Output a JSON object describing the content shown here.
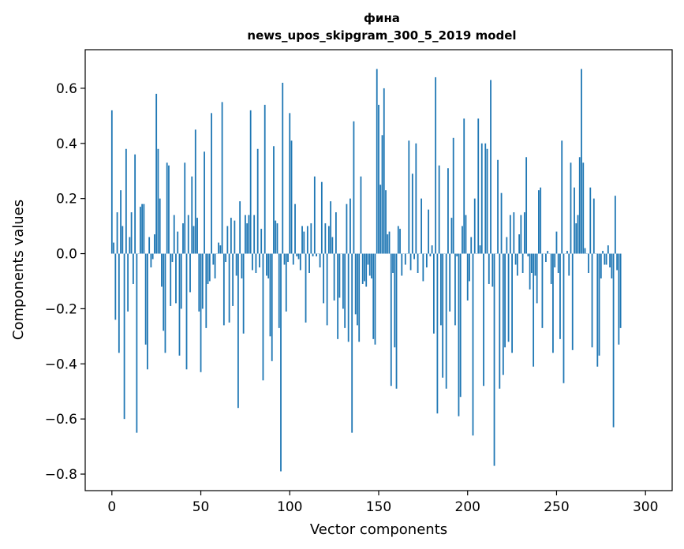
{
  "chart_data": {
    "type": "bar",
    "title": "фина",
    "subtitle": "news_upos_skipgram_300_5_2019 model",
    "xlabel": "Vector components",
    "ylabel": "Components values",
    "xlim": [
      -15,
      315
    ],
    "ylim": [
      -0.86,
      0.74
    ],
    "x_ticks": [
      0,
      50,
      100,
      150,
      200,
      250,
      300
    ],
    "y_ticks": [
      -0.8,
      -0.6,
      -0.4,
      -0.2,
      0.0,
      0.2,
      0.4,
      0.6
    ],
    "y_tick_labels": [
      "−0.8",
      "−0.6",
      "−0.4",
      "−0.2",
      "0.0",
      "0.2",
      "0.4",
      "0.6"
    ],
    "grid": false,
    "color": "#1f77b4",
    "values": [
      0.52,
      0.04,
      -0.24,
      0.15,
      -0.36,
      0.23,
      0.1,
      -0.6,
      0.38,
      -0.21,
      0.06,
      0.15,
      -0.11,
      0.36,
      -0.65,
      0.0,
      0.17,
      0.18,
      0.18,
      -0.33,
      -0.42,
      0.06,
      -0.05,
      -0.02,
      0.07,
      0.58,
      0.38,
      0.2,
      -0.12,
      -0.28,
      -0.36,
      0.33,
      0.32,
      -0.19,
      -0.03,
      0.14,
      -0.18,
      0.08,
      -0.37,
      -0.2,
      0.11,
      0.33,
      -0.42,
      0.14,
      -0.14,
      0.28,
      0.1,
      0.45,
      0.13,
      -0.21,
      -0.43,
      -0.2,
      0.37,
      -0.27,
      -0.11,
      -0.1,
      0.51,
      -0.04,
      -0.09,
      0.0,
      0.04,
      0.03,
      0.55,
      -0.26,
      -0.03,
      0.1,
      -0.25,
      0.13,
      -0.19,
      0.12,
      -0.08,
      -0.56,
      0.19,
      -0.09,
      -0.29,
      0.14,
      0.11,
      0.14,
      0.52,
      -0.06,
      0.14,
      -0.07,
      0.38,
      -0.05,
      0.09,
      -0.46,
      0.54,
      -0.08,
      -0.09,
      -0.3,
      -0.39,
      0.39,
      0.12,
      0.11,
      -0.27,
      -0.79,
      0.62,
      -0.04,
      -0.21,
      -0.03,
      0.51,
      0.41,
      -0.04,
      0.18,
      -0.01,
      -0.02,
      -0.06,
      0.1,
      0.08,
      -0.25,
      0.1,
      -0.07,
      0.11,
      -0.01,
      0.28,
      -0.01,
      0.0,
      -0.05,
      0.26,
      -0.18,
      0.11,
      -0.26,
      0.1,
      0.19,
      0.06,
      -0.17,
      0.15,
      -0.31,
      -0.16,
      0.0,
      -0.2,
      -0.27,
      0.18,
      -0.32,
      0.2,
      -0.65,
      0.48,
      -0.22,
      -0.26,
      -0.32,
      0.28,
      -0.11,
      -0.1,
      -0.12,
      -0.04,
      -0.08,
      -0.09,
      -0.31,
      -0.33,
      0.67,
      0.54,
      0.25,
      0.43,
      0.6,
      0.23,
      0.07,
      0.08,
      -0.48,
      -0.07,
      -0.34,
      -0.49,
      0.1,
      0.09,
      -0.08,
      0.0,
      -0.04,
      0.0,
      0.41,
      -0.06,
      0.29,
      -0.02,
      0.4,
      -0.07,
      0.0,
      0.2,
      -0.1,
      0.0,
      -0.05,
      0.16,
      -0.01,
      0.03,
      -0.29,
      0.64,
      -0.58,
      0.32,
      -0.26,
      -0.45,
      0.0,
      -0.49,
      0.31,
      -0.21,
      0.13,
      0.42,
      -0.26,
      -0.01,
      -0.59,
      -0.52,
      0.1,
      0.49,
      0.14,
      -0.17,
      -0.1,
      0.06,
      -0.66,
      0.2,
      0.0,
      0.49,
      0.03,
      0.4,
      -0.48,
      0.4,
      0.38,
      -0.11,
      0.63,
      -0.12,
      -0.77,
      0.0,
      0.34,
      -0.49,
      0.22,
      -0.44,
      -0.34,
      0.06,
      -0.32,
      0.14,
      -0.36,
      0.15,
      -0.04,
      -0.08,
      0.07,
      0.14,
      -0.07,
      0.15,
      0.35,
      -0.01,
      -0.13,
      -0.07,
      -0.41,
      -0.08,
      -0.18,
      0.23,
      0.24,
      -0.27,
      0.0,
      -0.03,
      0.01,
      0.0,
      -0.11,
      -0.36,
      -0.05,
      0.08,
      -0.07,
      -0.31,
      0.41,
      -0.47,
      0.0,
      0.01,
      -0.08,
      0.33,
      -0.35,
      0.24,
      0.11,
      0.14,
      0.35,
      0.67,
      0.33,
      0.02,
      0.0,
      -0.07,
      0.24,
      -0.34,
      0.2,
      0.0,
      -0.41,
      -0.37,
      -0.09,
      0.01,
      -0.04,
      -0.04,
      0.03,
      -0.05,
      -0.09,
      -0.63,
      0.21,
      -0.06,
      -0.33,
      -0.27
    ]
  }
}
